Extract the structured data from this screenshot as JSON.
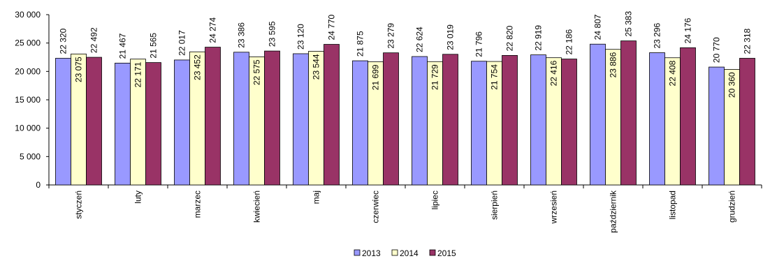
{
  "chart_data": {
    "type": "bar",
    "categories": [
      "styczeń",
      "luty",
      "marzec",
      "kwiecień",
      "maj",
      "czerwiec",
      "lipiec",
      "sierpień",
      "wrzesień",
      "październik",
      "listopad",
      "grudzień"
    ],
    "series": [
      {
        "name": "2013",
        "color": "#9999ff",
        "values": [
          22320,
          21467,
          22017,
          23386,
          23120,
          21875,
          22624,
          21796,
          22919,
          24807,
          23296,
          20770
        ],
        "labels": [
          "22 320",
          "21 467",
          "22 017",
          "23 386",
          "23 120",
          "21 875",
          "22 624",
          "21 796",
          "22 919",
          "24 807",
          "23 296",
          "20 770"
        ]
      },
      {
        "name": "2014",
        "color": "#ffffcc",
        "values": [
          23075,
          22171,
          23452,
          22575,
          23544,
          21699,
          21729,
          21754,
          22416,
          23886,
          22408,
          20360
        ],
        "labels": [
          "23 075",
          "22 171",
          "23 452",
          "22 575",
          "23 544",
          "21 699",
          "21 729",
          "21 754",
          "22 416",
          "23 886",
          "22 408",
          "20 360"
        ]
      },
      {
        "name": "2015",
        "color": "#993366",
        "values": [
          22492,
          21565,
          24274,
          23595,
          24770,
          23279,
          23019,
          22820,
          22186,
          25383,
          24176,
          22318
        ],
        "labels": [
          "22 492",
          "21 565",
          "24 274",
          "23 595",
          "24 770",
          "23 279",
          "23 019",
          "22 820",
          "22 186",
          "25 383",
          "24 176",
          "22 318"
        ]
      }
    ],
    "ylim": [
      0,
      30000
    ],
    "yticks": [
      0,
      5000,
      10000,
      15000,
      20000,
      25000,
      30000
    ],
    "ytick_labels": [
      "0",
      "5 000",
      "10 000",
      "15 000",
      "20 000",
      "25 000",
      "30 000"
    ],
    "legend_position": "bottom-center",
    "grid": false
  }
}
